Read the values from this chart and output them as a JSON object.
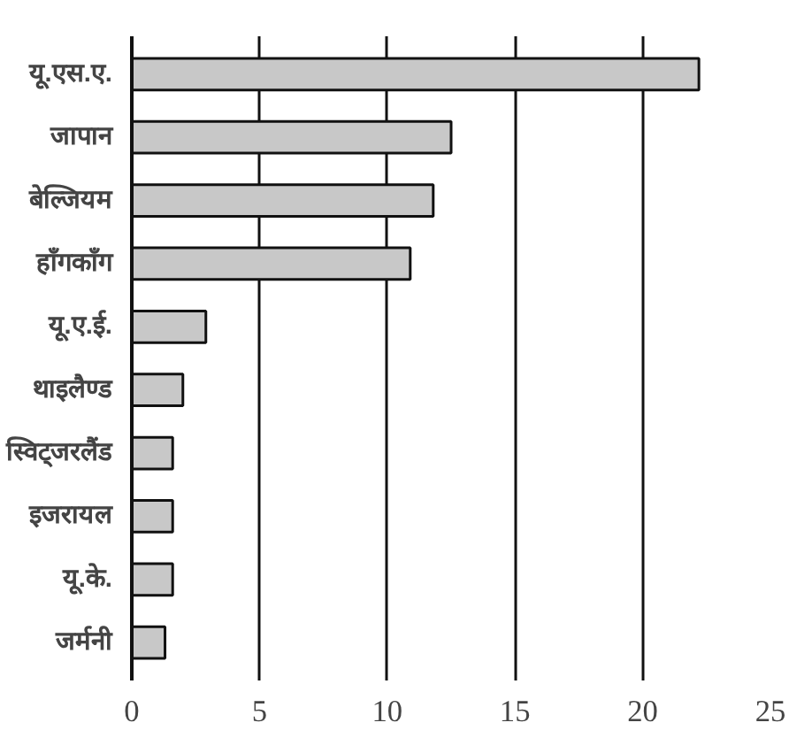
{
  "chart_data": {
    "type": "bar",
    "orientation": "horizontal",
    "categories": [
      "यू.एस.ए.",
      "जापान",
      "बेल्जियम",
      "हाँगकाँग",
      "यू.ए.ई.",
      "थाइलैण्ड",
      "स्विट्जरलैंड",
      "इजरायल",
      "यू.के.",
      "जर्मनी"
    ],
    "values": [
      22.2,
      12.5,
      11.8,
      10.9,
      2.9,
      2.0,
      1.6,
      1.6,
      1.6,
      1.3
    ],
    "color": "#c8c8c8",
    "xlim": [
      0,
      25
    ],
    "xticks": [
      0,
      5,
      10,
      15,
      20,
      25
    ],
    "grid": "x"
  }
}
